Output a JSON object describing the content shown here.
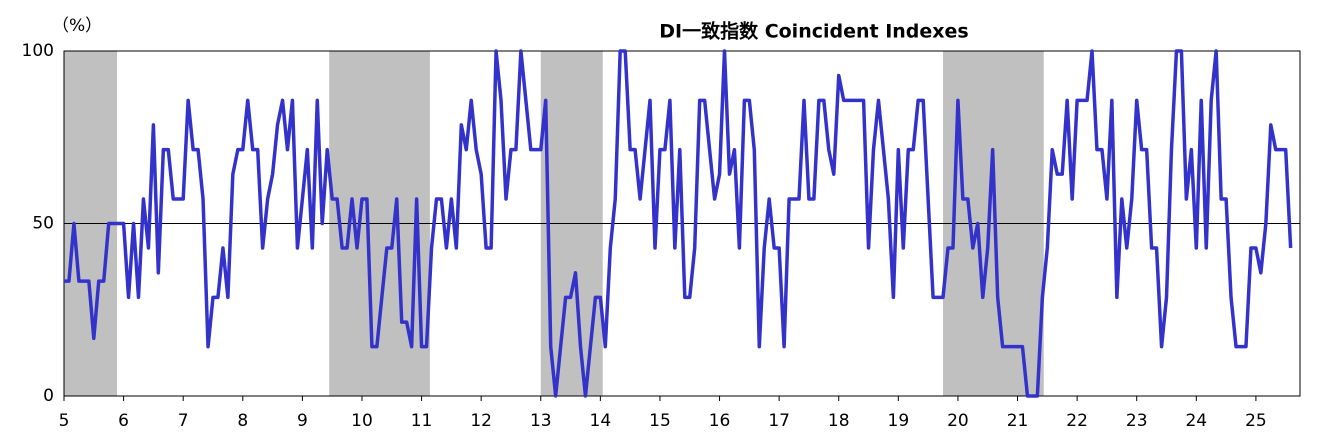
{
  "chart_data": {
    "type": "line",
    "title": "DI一致指数 Coincident Indexes",
    "y_unit": "（%）",
    "xlim": [
      5,
      25.74
    ],
    "xticks": [
      5,
      6,
      7,
      8,
      9,
      10,
      11,
      12,
      13,
      14,
      15,
      16,
      17,
      18,
      19,
      20,
      21,
      22,
      23,
      24,
      25
    ],
    "ylim": [
      0,
      100
    ],
    "yticks": [
      0,
      50,
      100
    ],
    "grid": true,
    "shaded_periods": [
      [
        5.0,
        5.89
      ],
      [
        9.45,
        11.14
      ],
      [
        13.0,
        14.04
      ],
      [
        19.75,
        21.44
      ]
    ],
    "shade_color": "#c0c0c0",
    "x": [
      5,
      5.083,
      5.167,
      5.25,
      5.333,
      5.417,
      5.5,
      5.583,
      5.667,
      5.75,
      5.833,
      5.917,
      6,
      6.083,
      6.167,
      6.25,
      6.333,
      6.417,
      6.5,
      6.583,
      6.667,
      6.75,
      6.833,
      6.917,
      7,
      7.083,
      7.167,
      7.25,
      7.333,
      7.417,
      7.5,
      7.583,
      7.667,
      7.75,
      7.833,
      7.917,
      8,
      8.083,
      8.167,
      8.25,
      8.333,
      8.417,
      8.5,
      8.583,
      8.667,
      8.75,
      8.833,
      8.917,
      9,
      9.083,
      9.167,
      9.25,
      9.333,
      9.417,
      9.5,
      9.583,
      9.667,
      9.75,
      9.833,
      9.917,
      10,
      10.083,
      10.167,
      10.25,
      10.333,
      10.417,
      10.5,
      10.583,
      10.667,
      10.75,
      10.833,
      10.917,
      11,
      11.083,
      11.167,
      11.25,
      11.333,
      11.417,
      11.5,
      11.583,
      11.667,
      11.75,
      11.833,
      11.917,
      12,
      12.083,
      12.167,
      12.25,
      12.333,
      12.417,
      12.5,
      12.583,
      12.667,
      12.75,
      12.833,
      12.917,
      13,
      13.083,
      13.167,
      13.25,
      13.333,
      13.417,
      13.5,
      13.583,
      13.667,
      13.75,
      13.833,
      13.917,
      14,
      14.083,
      14.167,
      14.25,
      14.333,
      14.417,
      14.5,
      14.583,
      14.667,
      14.75,
      14.833,
      14.917,
      15,
      15.083,
      15.167,
      15.25,
      15.333,
      15.417,
      15.5,
      15.583,
      15.667,
      15.75,
      15.833,
      15.917,
      16,
      16.083,
      16.167,
      16.25,
      16.333,
      16.417,
      16.5,
      16.583,
      16.667,
      16.75,
      16.833,
      16.917,
      17,
      17.083,
      17.167,
      17.25,
      17.333,
      17.417,
      17.5,
      17.583,
      17.667,
      17.75,
      17.833,
      17.917,
      18,
      18.083,
      18.167,
      18.25,
      18.333,
      18.417,
      18.5,
      18.583,
      18.667,
      18.75,
      18.833,
      18.917,
      19,
      19.083,
      19.167,
      19.25,
      19.333,
      19.417,
      19.5,
      19.583,
      19.667,
      19.75,
      19.833,
      19.917,
      20,
      20.083,
      20.167,
      20.25,
      20.333,
      20.417,
      20.5,
      20.583,
      20.667,
      20.75,
      20.833,
      20.917,
      21,
      21.083,
      21.167,
      21.25,
      21.333,
      21.417,
      21.5,
      21.583,
      21.667,
      21.75,
      21.833,
      21.917,
      22,
      22.083,
      22.167,
      22.25,
      22.333,
      22.417,
      22.5,
      22.583,
      22.667,
      22.75,
      22.833,
      22.917,
      23,
      23.083,
      23.167,
      23.25,
      23.333,
      23.417,
      23.5,
      23.583,
      23.667,
      23.75,
      23.833,
      23.917,
      24,
      24.083,
      24.167,
      24.25,
      24.333,
      24.417,
      24.5,
      24.583,
      24.667,
      24.75,
      24.833,
      24.917,
      25,
      25.083,
      25.167,
      25.25,
      25.333,
      25.417,
      25.5,
      25.583
    ],
    "series": [
      {
        "color": "#3333cc",
        "values": [
          33.3,
          33.3,
          50,
          33.3,
          33.3,
          33.3,
          16.7,
          33.3,
          33.3,
          50,
          50,
          50,
          50,
          28.6,
          50,
          28.6,
          57.1,
          42.9,
          78.6,
          35.7,
          71.4,
          71.4,
          57.1,
          57.1,
          57.1,
          85.7,
          71.4,
          71.4,
          57.1,
          14.3,
          28.6,
          28.6,
          42.9,
          28.6,
          64.3,
          71.4,
          71.4,
          85.7,
          71.4,
          71.4,
          42.9,
          57.1,
          64.3,
          78.6,
          85.7,
          71.4,
          85.7,
          42.9,
          57.1,
          71.4,
          42.9,
          85.7,
          50,
          71.4,
          57.1,
          57.1,
          42.9,
          42.9,
          57.1,
          42.9,
          57.1,
          57.1,
          14.3,
          14.3,
          28.6,
          42.9,
          42.9,
          57.1,
          21.4,
          21.4,
          14.3,
          57.1,
          14.3,
          14.3,
          42.9,
          57.1,
          57.1,
          42.9,
          57.1,
          42.9,
          78.6,
          71.4,
          85.7,
          71.4,
          64.3,
          42.9,
          42.9,
          100,
          85.7,
          57.1,
          71.4,
          71.4,
          100,
          85.7,
          71.4,
          71.4,
          71.4,
          85.7,
          14.3,
          0,
          14.3,
          28.6,
          28.6,
          35.7,
          14.3,
          0,
          14.3,
          28.6,
          28.6,
          14.3,
          42.9,
          57.1,
          100,
          100,
          71.4,
          71.4,
          57.1,
          71.4,
          85.7,
          42.9,
          71.4,
          71.4,
          85.7,
          42.9,
          71.4,
          28.6,
          28.6,
          42.9,
          85.7,
          85.7,
          71.4,
          57.1,
          64.3,
          100,
          64.3,
          71.4,
          42.9,
          85.7,
          85.7,
          71.4,
          14.3,
          42.9,
          57.1,
          42.9,
          42.9,
          14.3,
          57.1,
          57.1,
          57.1,
          85.7,
          57.1,
          57.1,
          85.7,
          85.7,
          71.4,
          64.3,
          92.9,
          85.7,
          85.7,
          85.7,
          85.7,
          85.7,
          42.9,
          71.4,
          85.7,
          71.4,
          57.1,
          28.6,
          71.4,
          42.9,
          71.4,
          71.4,
          85.7,
          85.7,
          57.1,
          28.6,
          28.6,
          28.6,
          42.9,
          42.9,
          85.7,
          57.1,
          57.1,
          42.9,
          50,
          28.6,
          42.9,
          71.4,
          28.6,
          14.3,
          14.3,
          14.3,
          14.3,
          14.3,
          0,
          0,
          0,
          28.6,
          42.9,
          71.4,
          64.3,
          64.3,
          85.7,
          57.1,
          85.7,
          85.7,
          85.7,
          100,
          71.4,
          71.4,
          57.1,
          85.7,
          28.6,
          57.1,
          42.9,
          57.1,
          85.7,
          71.4,
          71.4,
          42.9,
          42.9,
          14.3,
          28.6,
          71.4,
          100,
          100,
          57.1,
          71.4,
          42.9,
          85.7,
          42.9,
          85.7,
          100,
          57.1,
          57.1,
          28.6,
          14.3,
          14.3,
          14.3,
          42.9,
          42.9,
          35.7,
          50,
          78.6,
          71.4,
          71.4,
          71.4,
          42.9
        ]
      }
    ]
  }
}
